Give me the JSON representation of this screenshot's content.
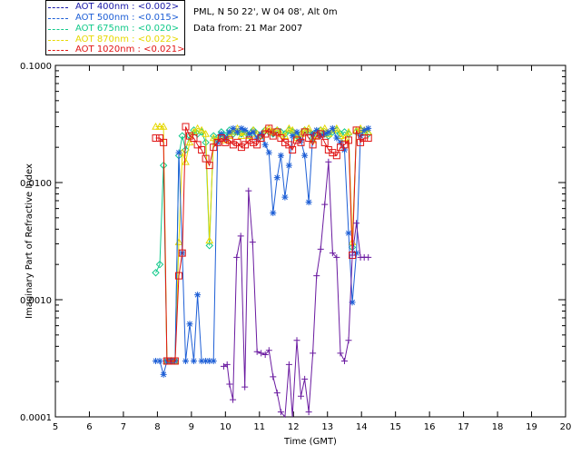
{
  "legend": [
    {
      "label": "AOT  400nm : <0.002>",
      "color": "#1a1aa8"
    },
    {
      "label": "AOT  500nm : <0.015>",
      "color": "#1e5fd6"
    },
    {
      "label": "AOT  675nm : <0.020>",
      "color": "#11c98a"
    },
    {
      "label": "AOT  870nm : <0.022>",
      "color": "#e6d800"
    },
    {
      "label": "AOT 1020nm : <0.021>",
      "color": "#e01515"
    }
  ],
  "info": {
    "site": "PML, N 50 22', W 04 08', Alt 0m",
    "date": "Data from: 21 Mar 2007"
  },
  "chart_data": {
    "type": "line",
    "xlabel": "Time (GMT)",
    "ylabel": "Imaginary Part of Refractive Index",
    "xlim": [
      5,
      20
    ],
    "ylim": [
      0.0001,
      0.1
    ],
    "yscale": "log",
    "x_ticks": [
      5,
      6,
      7,
      8,
      9,
      10,
      11,
      12,
      13,
      14,
      15,
      16,
      17,
      18,
      19,
      20
    ],
    "y_ticks": [
      0.0001,
      0.001,
      0.01,
      0.1
    ],
    "y_tick_labels": [
      "0.0001",
      "0.0010",
      "0.0100",
      "0.1000"
    ],
    "series": [
      {
        "name": "AOT  400nm : <0.002>",
        "color": "#6a1aa0",
        "marker": "plus",
        "x": [
          9.95,
          10.05,
          10.12,
          10.22,
          10.33,
          10.45,
          10.57,
          10.68,
          10.8,
          10.93,
          11.05,
          11.17,
          11.28,
          11.4,
          11.52,
          11.63,
          11.75,
          11.87,
          11.97,
          12.1,
          12.22,
          12.33,
          12.45,
          12.57,
          12.68,
          12.8,
          12.92,
          13.03,
          13.15,
          13.27,
          13.38,
          13.5,
          13.62,
          13.73,
          13.85,
          13.97,
          14.08,
          14.2
        ],
        "y": [
          0.00027,
          0.00028,
          0.00019,
          0.00014,
          0.0023,
          0.0035,
          0.00018,
          0.0085,
          0.0031,
          0.00036,
          0.00035,
          0.00034,
          0.00037,
          0.00022,
          0.00016,
          0.00011,
          8.5e-05,
          0.00028,
          8.5e-05,
          0.00045,
          0.00015,
          0.00021,
          0.00011,
          0.00035,
          0.0016,
          0.0027,
          0.0065,
          0.015,
          0.0025,
          0.0023,
          0.00035,
          0.0003,
          0.00045,
          0.0024,
          0.0045,
          0.0023,
          0.0023,
          0.0023
        ]
      },
      {
        "name": "AOT  500nm : <0.015>",
        "color": "#1e5fd6",
        "marker": "star",
        "x": [
          7.95,
          8.07,
          8.18,
          8.28,
          8.4,
          8.52,
          8.63,
          8.73,
          8.83,
          8.95,
          9.07,
          9.18,
          9.3,
          9.42,
          9.53,
          9.65,
          9.77,
          9.88,
          10.0,
          10.12,
          10.23,
          10.35,
          10.47,
          10.58,
          10.7,
          10.82,
          10.93,
          11.05,
          11.17,
          11.28,
          11.4,
          11.52,
          11.63,
          11.75,
          11.87,
          11.97,
          12.1,
          12.22,
          12.33,
          12.45,
          12.57,
          12.68,
          12.8,
          12.92,
          13.03,
          13.15,
          13.27,
          13.38,
          13.5,
          13.62,
          13.73,
          13.85,
          13.97,
          14.08,
          14.2
        ],
        "y": [
          0.0003,
          0.0003,
          0.00023,
          0.0003,
          0.0003,
          0.0003,
          0.018,
          0.0025,
          0.0003,
          0.00062,
          0.0003,
          0.0011,
          0.0003,
          0.0003,
          0.0003,
          0.0003,
          0.022,
          0.026,
          0.024,
          0.027,
          0.029,
          0.027,
          0.029,
          0.028,
          0.026,
          0.027,
          0.024,
          0.026,
          0.021,
          0.018,
          0.0055,
          0.011,
          0.017,
          0.0075,
          0.014,
          0.025,
          0.027,
          0.023,
          0.017,
          0.0068,
          0.026,
          0.028,
          0.025,
          0.026,
          0.027,
          0.029,
          0.024,
          0.022,
          0.019,
          0.0037,
          0.00095,
          0.0025,
          0.025,
          0.028,
          0.029
        ]
      },
      {
        "name": "AOT  675nm : <0.020>",
        "color": "#11c98a",
        "marker": "diamond",
        "x": [
          7.95,
          8.07,
          8.18,
          8.28,
          8.4,
          8.52,
          8.63,
          8.73,
          8.83,
          8.95,
          9.07,
          9.18,
          9.3,
          9.42,
          9.53,
          9.65,
          9.77,
          9.88,
          10.0,
          10.12,
          10.23,
          10.35,
          10.47,
          10.58,
          10.7,
          10.82,
          10.93,
          11.05,
          11.17,
          11.28,
          11.4,
          11.52,
          11.63,
          11.75,
          11.87,
          11.97,
          12.1,
          12.22,
          12.33,
          12.45,
          12.57,
          12.68,
          12.8,
          12.92,
          13.03,
          13.15,
          13.27,
          13.38,
          13.5,
          13.62,
          13.73,
          13.85,
          13.97,
          14.08,
          14.2
        ],
        "y": [
          0.0017,
          0.002,
          0.014,
          0.0003,
          0.0003,
          0.0003,
          0.017,
          0.025,
          0.019,
          0.025,
          0.028,
          0.026,
          0.027,
          0.022,
          0.0029,
          0.025,
          0.024,
          0.027,
          0.025,
          0.028,
          0.026,
          0.027,
          0.026,
          0.027,
          0.025,
          0.028,
          0.026,
          0.025,
          0.028,
          0.027,
          0.026,
          0.028,
          0.027,
          0.026,
          0.028,
          0.027,
          0.025,
          0.026,
          0.028,
          0.027,
          0.024,
          0.027,
          0.028,
          0.026,
          0.025,
          0.027,
          0.028,
          0.026,
          0.027,
          0.026,
          0.0028,
          0.027,
          0.028,
          0.027,
          0.026
        ]
      },
      {
        "name": "AOT  870nm : <0.022>",
        "color": "#e6d800",
        "marker": "triangle",
        "x": [
          7.95,
          8.07,
          8.18,
          8.28,
          8.4,
          8.52,
          8.63,
          8.73,
          8.83,
          8.95,
          9.07,
          9.18,
          9.3,
          9.42,
          9.53,
          9.65,
          9.77,
          9.88,
          10.0,
          10.12,
          10.23,
          10.35,
          10.47,
          10.58,
          10.7,
          10.82,
          10.93,
          11.05,
          11.17,
          11.28,
          11.4,
          11.52,
          11.63,
          11.75,
          11.87,
          11.97,
          12.1,
          12.22,
          12.33,
          12.45,
          12.57,
          12.68,
          12.8,
          12.92,
          13.03,
          13.15,
          13.27,
          13.38,
          13.5,
          13.62,
          13.73,
          13.85,
          13.97,
          14.08,
          14.2
        ],
        "y": [
          0.03,
          0.03,
          0.03,
          0.0003,
          0.0003,
          0.0003,
          0.0031,
          0.018,
          0.015,
          0.022,
          0.027,
          0.029,
          0.028,
          0.026,
          0.0032,
          0.024,
          0.023,
          0.025,
          0.023,
          0.025,
          0.027,
          0.029,
          0.025,
          0.027,
          0.025,
          0.028,
          0.026,
          0.025,
          0.028,
          0.029,
          0.027,
          0.028,
          0.026,
          0.025,
          0.029,
          0.028,
          0.024,
          0.026,
          0.028,
          0.029,
          0.023,
          0.025,
          0.028,
          0.029,
          0.026,
          0.028,
          0.029,
          0.025,
          0.024,
          0.027,
          0.0031,
          0.028,
          0.029,
          0.028,
          0.027
        ]
      },
      {
        "name": "AOT 1020nm : <0.021>",
        "color": "#e01515",
        "marker": "square",
        "x": [
          7.95,
          8.07,
          8.18,
          8.28,
          8.4,
          8.52,
          8.63,
          8.73,
          8.83,
          8.95,
          9.07,
          9.18,
          9.3,
          9.42,
          9.53,
          9.65,
          9.77,
          9.88,
          10.0,
          10.12,
          10.23,
          10.35,
          10.47,
          10.58,
          10.7,
          10.82,
          10.93,
          11.05,
          11.17,
          11.28,
          11.4,
          11.52,
          11.63,
          11.75,
          11.87,
          11.97,
          12.1,
          12.22,
          12.33,
          12.45,
          12.57,
          12.68,
          12.8,
          12.92,
          13.03,
          13.15,
          13.27,
          13.38,
          13.5,
          13.62,
          13.73,
          13.85,
          13.97,
          14.08,
          14.2
        ],
        "y": [
          0.024,
          0.024,
          0.022,
          0.0003,
          0.0003,
          0.0003,
          0.0016,
          0.0025,
          0.03,
          0.025,
          0.024,
          0.021,
          0.019,
          0.016,
          0.014,
          0.02,
          0.022,
          0.024,
          0.022,
          0.023,
          0.021,
          0.022,
          0.02,
          0.021,
          0.023,
          0.022,
          0.021,
          0.024,
          0.026,
          0.029,
          0.025,
          0.027,
          0.024,
          0.022,
          0.021,
          0.019,
          0.023,
          0.022,
          0.027,
          0.024,
          0.021,
          0.025,
          0.026,
          0.022,
          0.019,
          0.018,
          0.017,
          0.02,
          0.021,
          0.023,
          0.0024,
          0.028,
          0.022,
          0.024,
          0.024
        ]
      }
    ]
  }
}
